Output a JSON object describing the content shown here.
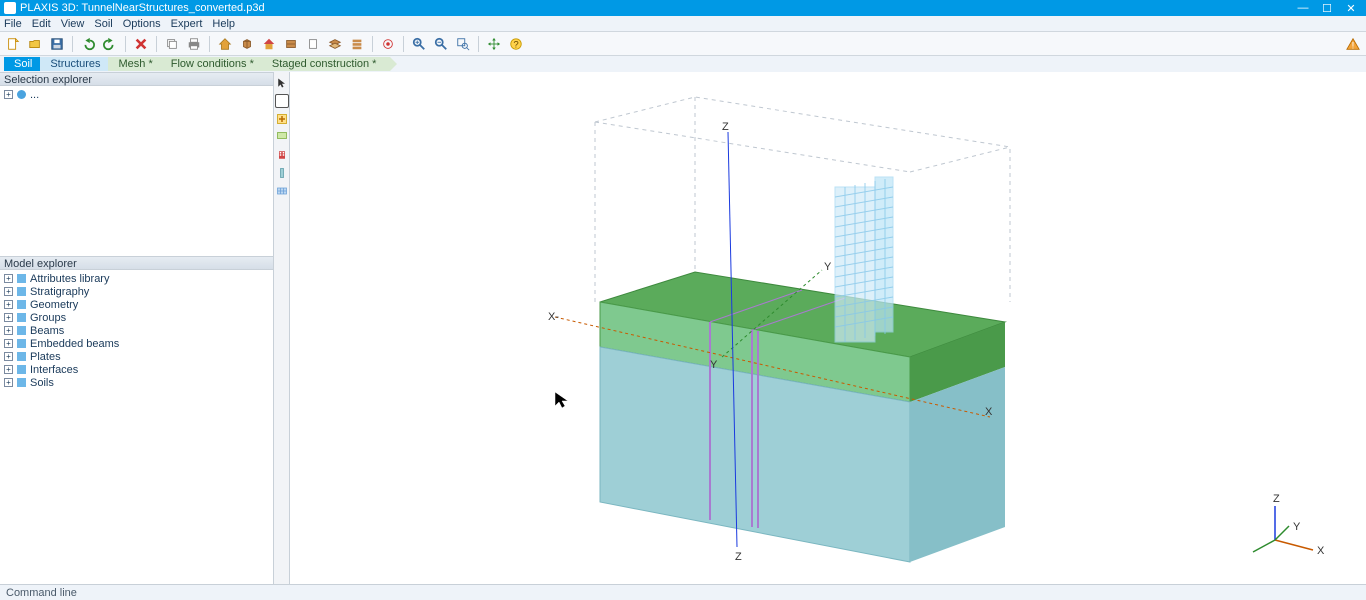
{
  "window": {
    "title": "PLAXIS 3D: TunnelNearStructures_converted.p3d",
    "accent": "#0099e5"
  },
  "menus": [
    "File",
    "Edit",
    "View",
    "Soil",
    "Options",
    "Expert",
    "Help"
  ],
  "toolbar_icons": [
    "new-file",
    "open-file",
    "save-file",
    "sep",
    "undo",
    "redo",
    "sep",
    "delete",
    "sep",
    "copy",
    "print",
    "sep",
    "home",
    "cube",
    "house",
    "box",
    "sheet",
    "layers",
    "stack",
    "sep",
    "target",
    "sep",
    "zoom-in",
    "zoom-out",
    "zoom-window",
    "sep",
    "move",
    "help"
  ],
  "toolbar_right_icon": "warning",
  "stages": [
    {
      "label": "Soil",
      "state": "active"
    },
    {
      "label": "Structures",
      "state": "light"
    },
    {
      "label": "Mesh *",
      "state": "avail"
    },
    {
      "label": "Flow conditions *",
      "state": "avail"
    },
    {
      "label": "Staged construction *",
      "state": "avail"
    }
  ],
  "selection_explorer": {
    "title": "Selection explorer",
    "items": [
      {
        "label": "..."
      }
    ]
  },
  "model_explorer": {
    "title": "Model explorer",
    "items": [
      {
        "label": "Attributes library"
      },
      {
        "label": "Stratigraphy"
      },
      {
        "label": "Geometry"
      },
      {
        "label": "Groups"
      },
      {
        "label": "Beams"
      },
      {
        "label": "Embedded beams"
      },
      {
        "label": "Plates"
      },
      {
        "label": "Interfaces"
      },
      {
        "label": "Soils"
      }
    ]
  },
  "tool_tray": [
    "pointer",
    "select-rect",
    "zoom-plus",
    "zoom-region",
    "struct",
    "well",
    "grid"
  ],
  "viewport": {
    "background": "#ffffff",
    "axis_labels": {
      "xpos": "X",
      "xneg": "X-",
      "ypos": "Y",
      "ztop": "Z",
      "zbot": "Z"
    },
    "bbox_line": "#bfc7d0",
    "soil_top_color": "#5bab5b",
    "soil_top_side": "#4a9a4a",
    "soil_mid_color": "#7fc98f",
    "soil_bottom_color": "#9ecfd6",
    "soil_bottom_side": "#86bfc8",
    "building_color": "#bde4f7",
    "axis_x_color": "#c85a00",
    "axis_y_color": "#2e8b2e",
    "axis_z_color": "#1a3adf",
    "triad": {
      "x": "X",
      "y": "Y",
      "z": "Z"
    }
  },
  "status": {
    "left": "Command line"
  }
}
